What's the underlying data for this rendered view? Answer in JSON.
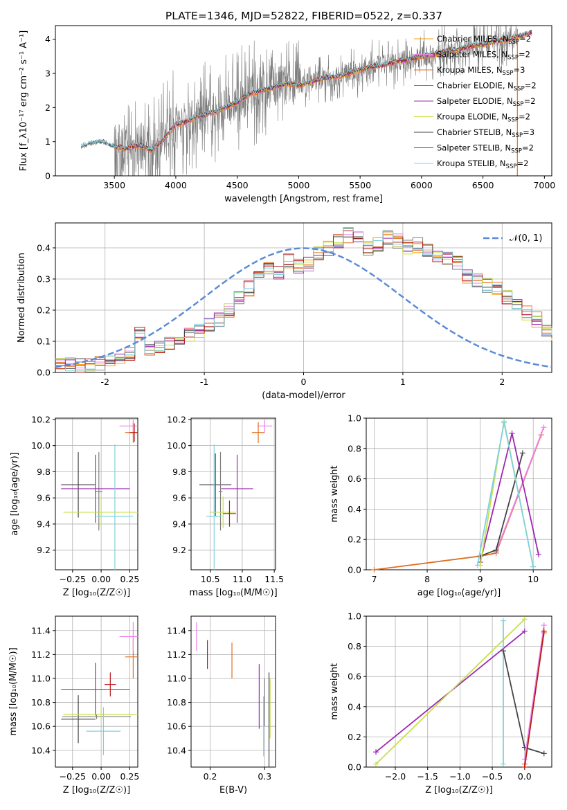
{
  "figure": {
    "title": "PLATE=1346, MJD=52822, FIBERID=0522, z=0.337"
  },
  "series": [
    {
      "name": "Chabrier MILES",
      "nssp": "2",
      "color": "#ff9800"
    },
    {
      "name": "Salpeter MILES",
      "nssp": "2",
      "color": "#ee82ee"
    },
    {
      "name": "Kroupa MILES",
      "nssp": "3",
      "color": "#e07020"
    },
    {
      "name": "Chabrier ELODIE",
      "nssp": "2",
      "color": "#808080"
    },
    {
      "name": "Salpeter ELODIE",
      "nssp": "2",
      "color": "#9c27b0"
    },
    {
      "name": "Kroupa ELODIE",
      "nssp": "2",
      "color": "#c6e048"
    },
    {
      "name": "Chabrier STELIB",
      "nssp": "3",
      "color": "#444444"
    },
    {
      "name": "Salpeter STELIB",
      "nssp": "2",
      "color": "#b71c1c"
    },
    {
      "name": "Kroupa STELIB",
      "nssp": "2",
      "color": "#80d0e0"
    }
  ],
  "chart_data": [
    {
      "id": "spectrum",
      "type": "line",
      "xlabel": "wavelength [Angstrom, rest frame]",
      "ylabel": "Flux [f_λ10⁻¹⁷ erg cm⁻² s⁻¹ A⁻¹]",
      "xlim": [
        3020,
        7060
      ],
      "ylim": [
        0,
        4.4
      ],
      "xticks": [
        3500,
        4000,
        4500,
        5000,
        5500,
        6000,
        6500,
        7000
      ],
      "yticks": [
        0,
        1,
        2,
        3,
        4
      ],
      "grid": false,
      "legend": "upper-right",
      "data_x": [
        3230,
        3300,
        3400,
        3500,
        3600,
        3700,
        3800,
        3900,
        4000,
        4100,
        4200,
        4300,
        4400,
        4500,
        4600,
        4700,
        4800,
        4900,
        5000,
        5100,
        5200,
        5300,
        5400,
        5500,
        5600,
        5700,
        5800,
        5900,
        6000,
        6100,
        6200,
        6300,
        6400,
        6500,
        6600,
        6700,
        6800,
        6900
      ],
      "model_y": [
        0.85,
        0.95,
        1.0,
        0.85,
        0.8,
        0.9,
        0.75,
        1.05,
        1.5,
        1.6,
        1.75,
        1.85,
        2.0,
        2.15,
        2.4,
        2.5,
        2.6,
        2.7,
        2.65,
        2.75,
        2.85,
        2.9,
        3.0,
        3.1,
        3.2,
        3.25,
        3.35,
        3.4,
        3.5,
        3.55,
        3.65,
        3.7,
        3.8,
        3.85,
        3.95,
        4.0,
        4.1,
        4.2
      ]
    },
    {
      "id": "residuals",
      "type": "line",
      "xlabel": "(data-model)/error",
      "ylabel": "Normed distribution",
      "xlim": [
        -2.5,
        2.5
      ],
      "ylim": [
        0,
        0.48
      ],
      "xticks": [
        -2,
        -1,
        0,
        1,
        2
      ],
      "yticks": [
        0.0,
        0.1,
        0.2,
        0.3,
        0.4
      ],
      "grid": true,
      "legend": "upper-right",
      "legend_label": "𝒩(0, 1)",
      "curve": "normal(0,1)",
      "bin_width": 0.1,
      "hist_start": -2.5,
      "hist_values": [
        0.02,
        0.025,
        0.02,
        0.025,
        0.03,
        0.04,
        0.05,
        0.06,
        0.125,
        0.07,
        0.085,
        0.09,
        0.11,
        0.12,
        0.13,
        0.15,
        0.17,
        0.2,
        0.24,
        0.27,
        0.3,
        0.33,
        0.32,
        0.36,
        0.34,
        0.35,
        0.38,
        0.4,
        0.42,
        0.44,
        0.43,
        0.4,
        0.41,
        0.43,
        0.42,
        0.4,
        0.41,
        0.39,
        0.38,
        0.37,
        0.35,
        0.31,
        0.3,
        0.28,
        0.27,
        0.24,
        0.22,
        0.19,
        0.17,
        0.14,
        0.12,
        0.11,
        0.1,
        0.08,
        0.07,
        0.06,
        0.05,
        0.04,
        0.03,
        0.025,
        0.02
      ]
    },
    {
      "id": "age-vs-Z",
      "type": "scatter",
      "xlabel": "Z [log₁₀(Z/Z☉)]",
      "ylabel": "age  [log₁₀(age/yr)]",
      "xlim": [
        -0.4,
        0.32
      ],
      "ylim": [
        9.05,
        10.21
      ],
      "xticks": [
        -0.25,
        0.0,
        0.25
      ],
      "xticklabels": [
        "−0.25",
        "0.00",
        "0.25"
      ],
      "yticks": [
        9.2,
        9.4,
        9.6,
        9.8,
        10.0,
        10.2
      ],
      "grid": true,
      "points": [
        {
          "s": 6,
          "x": -0.2,
          "xe": 0.15,
          "y": 9.7,
          "ye": 0.25
        },
        {
          "s": 3,
          "x": -0.02,
          "xe": 0.03,
          "y": 9.65,
          "ye": 0.3
        },
        {
          "s": 4,
          "x": -0.05,
          "xe": 0.3,
          "y": 9.67,
          "ye": 0.26
        },
        {
          "s": 5,
          "x": 0.0,
          "xe": 0.33,
          "y": 9.49,
          "ye": 0.12
        },
        {
          "s": 8,
          "x": 0.12,
          "xe": 0.16,
          "y": 9.46,
          "ye": 0.55
        },
        {
          "s": 2,
          "x": 0.28,
          "xe": 0.07,
          "y": 10.1,
          "ye": 0.08
        },
        {
          "s": 1,
          "x": 0.28,
          "xe": 0.12,
          "y": 10.15,
          "ye": 0.05
        },
        {
          "s": 7,
          "x": 0.29,
          "xe": 0.04,
          "y": 10.1,
          "ye": 0.07
        }
      ]
    },
    {
      "id": "age-vs-mass",
      "type": "scatter",
      "xlabel": "mass [log₁₀(M/M☉)]",
      "ylabel": "",
      "xlim": [
        10.2,
        11.52
      ],
      "ylim": [
        9.05,
        10.21
      ],
      "xticks": [
        10.5,
        11.0,
        11.5
      ],
      "xticklabels": [
        "10.5",
        "11.0",
        "11.5"
      ],
      "yticks": [
        9.2,
        9.4,
        9.6,
        9.8,
        10.0,
        10.2
      ],
      "grid": true,
      "points": [
        {
          "s": 6,
          "x": 10.58,
          "xe": 0.25,
          "y": 9.7,
          "ye": 0.24
        },
        {
          "s": 3,
          "x": 10.66,
          "xe": 0.03,
          "y": 9.65,
          "ye": 0.3
        },
        {
          "s": 4,
          "x": 10.92,
          "xe": 0.25,
          "y": 9.67,
          "ye": 0.26
        },
        {
          "s": 5,
          "x": 10.7,
          "xe": 0.2,
          "y": 9.49,
          "ye": 0.12
        },
        {
          "s": 8,
          "x": 10.56,
          "xe": 0.12,
          "y": 9.46,
          "ye": 0.55
        },
        {
          "s": 7,
          "x": 10.8,
          "xe": 0.1,
          "y": 9.48,
          "ye": 0.1
        },
        {
          "s": 2,
          "x": 11.25,
          "xe": 0.1,
          "y": 10.1,
          "ye": 0.08
        },
        {
          "s": 1,
          "x": 11.35,
          "xe": 0.12,
          "y": 10.15,
          "ye": 0.05
        }
      ]
    },
    {
      "id": "weight-vs-age",
      "type": "line",
      "xlabel": "age  [log₁₀(age/yr)]",
      "ylabel": "mass weight",
      "xlim": [
        6.85,
        10.35
      ],
      "ylim": [
        0,
        1.0
      ],
      "xticks": [
        7,
        8,
        9,
        10
      ],
      "xticklabels": [
        "7",
        "8",
        "9",
        "10"
      ],
      "yticks": [
        0.0,
        0.2,
        0.4,
        0.6,
        0.8,
        1.0
      ],
      "grid": true,
      "lines": [
        {
          "s": 2,
          "x": [
            7.0,
            9.0,
            9.3,
            10.15
          ],
          "y": [
            0.0,
            0.09,
            0.11,
            0.89
          ]
        },
        {
          "s": 1,
          "x": [
            9.3,
            10.2
          ],
          "y": [
            0.12,
            0.94
          ]
        },
        {
          "s": 6,
          "x": [
            9.0,
            9.3,
            9.8
          ],
          "y": [
            0.09,
            0.13,
            0.77
          ]
        },
        {
          "s": 4,
          "x": [
            9.0,
            9.6,
            10.1
          ],
          "y": [
            0.05,
            0.9,
            0.1
          ]
        },
        {
          "s": 5,
          "x": [
            9.0,
            9.45,
            10.0
          ],
          "y": [
            0.03,
            0.98,
            0.02
          ]
        },
        {
          "s": 8,
          "x": [
            8.95,
            9.45,
            10.0
          ],
          "y": [
            0.03,
            0.97,
            0.02
          ]
        }
      ]
    },
    {
      "id": "mass-vs-Z",
      "type": "scatter",
      "xlabel": "Z [log₁₀(Z/Z☉)]",
      "ylabel": "mass [log₁₀(M/M☉)]",
      "xlim": [
        -0.4,
        0.32
      ],
      "ylim": [
        10.26,
        11.52
      ],
      "xticks": [
        -0.25,
        0.0,
        0.25
      ],
      "xticklabels": [
        "−0.25",
        "0.00",
        "0.25"
      ],
      "yticks": [
        10.4,
        10.6,
        10.8,
        11.0,
        11.2,
        11.4
      ],
      "grid": true,
      "points": [
        {
          "s": 6,
          "x": -0.2,
          "xe": 0.15,
          "y": 10.66,
          "ye": 0.2
        },
        {
          "s": 3,
          "x": -0.04,
          "xe": 0.3,
          "y": 10.68,
          "ye": 0.02
        },
        {
          "s": 4,
          "x": -0.05,
          "xe": 0.3,
          "y": 10.91,
          "ye": 0.22
        },
        {
          "s": 5,
          "x": 0.0,
          "xe": 0.33,
          "y": 10.7,
          "ye": 0.05
        },
        {
          "s": 8,
          "x": 0.02,
          "xe": 0.15,
          "y": 10.56,
          "ye": 0.2
        },
        {
          "s": 7,
          "x": 0.08,
          "xe": 0.05,
          "y": 10.95,
          "ye": 0.1
        },
        {
          "s": 2,
          "x": 0.28,
          "xe": 0.07,
          "y": 11.18,
          "ye": 0.18
        },
        {
          "s": 1,
          "x": 0.28,
          "xe": 0.12,
          "y": 11.35,
          "ye": 0.12
        }
      ]
    },
    {
      "id": "mass-vs-EBV",
      "type": "scatter",
      "xlabel": "E(B-V)",
      "ylabel": "",
      "xlim": [
        0.165,
        0.32
      ],
      "ylim": [
        10.26,
        11.52
      ],
      "xticks": [
        0.2,
        0.3
      ],
      "xticklabels": [
        "0.2",
        "0.3"
      ],
      "yticks": [
        10.4,
        10.6,
        10.8,
        11.0,
        11.2,
        11.4
      ],
      "grid": true,
      "points": [
        {
          "s": 1,
          "x": 0.175,
          "y": 11.35,
          "ye": 0.12
        },
        {
          "s": 2,
          "x": 0.24,
          "y": 11.15,
          "ye": 0.15
        },
        {
          "s": 4,
          "x": 0.29,
          "y": 10.85,
          "ye": 0.27
        },
        {
          "s": 5,
          "x": 0.31,
          "y": 10.75,
          "ye": 0.25
        },
        {
          "s": 6,
          "x": 0.308,
          "y": 10.65,
          "ye": 0.4
        },
        {
          "s": 8,
          "x": 0.298,
          "y": 10.6,
          "ye": 0.25
        },
        {
          "s": 3,
          "x": 0.3,
          "y": 10.8,
          "ye": 0.2
        },
        {
          "s": 7,
          "x": 0.195,
          "y": 11.2,
          "ye": 0.12
        }
      ]
    },
    {
      "id": "weight-vs-Z",
      "type": "line",
      "xlabel": "Z [log₁₀(Z/Z☉)]",
      "ylabel": "mass weight",
      "xlim": [
        -2.45,
        0.42
      ],
      "ylim": [
        0,
        1.0
      ],
      "xticks": [
        -2.0,
        -1.5,
        -1.0,
        -0.5,
        0.0
      ],
      "xticklabels": [
        "−2.0",
        "−1.5",
        "−1.0",
        "−0.5",
        "0.0"
      ],
      "yticks": [
        0.0,
        0.2,
        0.4,
        0.6,
        0.8,
        1.0
      ],
      "grid": true,
      "lines": [
        {
          "s": 4,
          "x": [
            -2.3,
            0.0
          ],
          "y": [
            0.1,
            0.9
          ]
        },
        {
          "s": 5,
          "x": [
            -2.3,
            0.0
          ],
          "y": [
            0.02,
            0.98
          ]
        },
        {
          "s": 8,
          "x": [
            -0.33,
            -0.33
          ],
          "y": [
            0.02,
            0.97
          ]
        },
        {
          "s": 6,
          "x": [
            -0.33,
            0.0,
            0.3
          ],
          "y": [
            0.77,
            0.13,
            0.09
          ]
        },
        {
          "s": 2,
          "x": [
            0.0,
            0.3
          ],
          "y": [
            0.02,
            0.89
          ]
        },
        {
          "s": 1,
          "x": [
            0.0,
            0.3
          ],
          "y": [
            0.05,
            0.94
          ]
        },
        {
          "s": 7,
          "x": [
            0.0,
            0.3
          ],
          "y": [
            0.0,
            0.9
          ]
        }
      ]
    }
  ]
}
